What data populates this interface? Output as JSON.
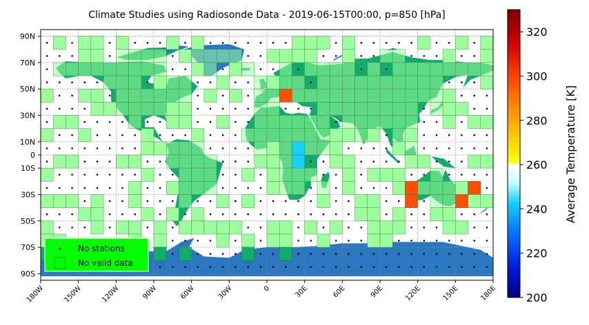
{
  "title": "Climate Studies using Radiosonde Data - 2019-06-15T00:00, p=850 [hPa]",
  "axes": {
    "lat_ticks": [
      "90N",
      "70N",
      "50N",
      "30N",
      "10N",
      "0",
      "10S",
      "30S",
      "50S",
      "70S",
      "90S"
    ],
    "lat_values": [
      90,
      70,
      50,
      30,
      10,
      0,
      -10,
      -30,
      -50,
      -70,
      -90
    ],
    "lon_ticks": [
      "180W",
      "150W",
      "120W",
      "90W",
      "60W",
      "30W",
      "0",
      "30E",
      "60E",
      "90E",
      "120E",
      "150E",
      "180E"
    ],
    "lon_values": [
      -180,
      -150,
      -120,
      -90,
      -60,
      -30,
      0,
      30,
      60,
      90,
      120,
      150,
      180
    ],
    "lat_range": [
      -95,
      95
    ],
    "lon_range": [
      -180,
      180
    ],
    "grid": "dotted"
  },
  "legend": {
    "placement": "bottom-left",
    "background": "#00ff00",
    "items": [
      {
        "label": "No stations",
        "marker": "dot"
      },
      {
        "label": "No valid data",
        "marker": "green-square"
      }
    ]
  },
  "colorbar": {
    "label": "Average Temperature [K]",
    "ticks": [
      200,
      220,
      240,
      260,
      280,
      300,
      320
    ],
    "range": [
      200,
      330
    ],
    "colormap": "jet-like with white band near 260 K"
  },
  "colors": {
    "land": "#12ab6b",
    "ice": "#2b78c0",
    "no_valid_data": "#9dff9d",
    "no_stations_dot": "#000000"
  },
  "chart_data": {
    "type": "heatmap",
    "grid_cell_deg": 10,
    "title": "Climate Studies using Radiosonde Data - 2019-06-15T00:00, p=850 [hPa]",
    "valued_cells": [
      {
        "lon": 10,
        "lat": 40,
        "value": 292
      },
      {
        "lon": 20,
        "lat": 0,
        "value": 232
      },
      {
        "lon": 20,
        "lat": -10,
        "value": 232
      },
      {
        "lon": 110,
        "lat": -30,
        "value": 285
      },
      {
        "lon": 110,
        "lat": -40,
        "value": 285
      },
      {
        "lon": 160,
        "lat": -30,
        "value": 285
      },
      {
        "lon": 150,
        "lat": -40,
        "value": 285
      }
    ]
  }
}
